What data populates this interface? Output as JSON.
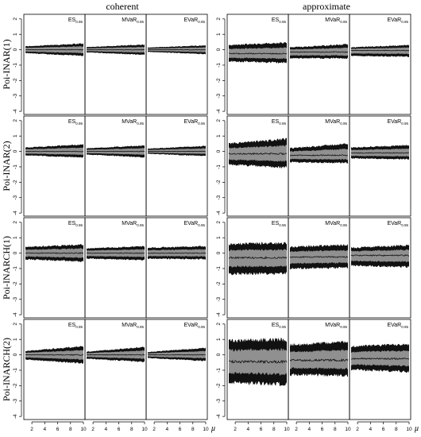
{
  "header": {
    "left": "coherent",
    "right": "approximate"
  },
  "rows": [
    {
      "label": "Poi-INAR(1)"
    },
    {
      "label": "Poi-INAR(2)"
    },
    {
      "label": "Poi-INARCH(1)"
    },
    {
      "label": "Poi-INARCH(2)"
    }
  ],
  "measures": [
    {
      "base": "ES",
      "sub": "0.95"
    },
    {
      "base": "MVaR",
      "sub": "0.95"
    },
    {
      "base": "EVaR",
      "sub": "0.95"
    }
  ],
  "x_axis_label": "μ",
  "chart_data": {
    "type": "area",
    "layout": "4 rows × 6 columns of panels",
    "x_ticks": [
      2,
      4,
      6,
      8,
      10
    ],
    "xlim": [
      1,
      10
    ],
    "y_ticks": [
      -4,
      -3,
      -2,
      -1,
      0,
      1,
      2
    ],
    "ylim": [
      -4.2,
      2.3
    ],
    "colors": {
      "outer_band": "#111111",
      "inner_band": "#909090",
      "median": "#111111"
    },
    "panels": [
      {
        "row": 0,
        "block": "coherent",
        "measure": 0,
        "envelope": [
          [
            1,
            -0.22,
            0.22
          ],
          [
            10,
            -0.4,
            0.4
          ]
        ],
        "median": 0.0
      },
      {
        "row": 0,
        "block": "coherent",
        "measure": 1,
        "envelope": [
          [
            1,
            -0.17,
            0.17
          ],
          [
            10,
            -0.33,
            0.33
          ]
        ],
        "median": 0.0
      },
      {
        "row": 0,
        "block": "coherent",
        "measure": 2,
        "envelope": [
          [
            1,
            -0.14,
            0.14
          ],
          [
            10,
            -0.28,
            0.28
          ]
        ],
        "median": 0.0
      },
      {
        "row": 0,
        "block": "approximate",
        "measure": 0,
        "envelope": [
          [
            1,
            -0.75,
            0.3
          ],
          [
            10,
            -0.85,
            0.45
          ]
        ],
        "median": -0.25
      },
      {
        "row": 0,
        "block": "approximate",
        "measure": 1,
        "envelope": [
          [
            1,
            -0.55,
            0.15
          ],
          [
            10,
            -0.55,
            0.35
          ]
        ],
        "median": -0.15
      },
      {
        "row": 0,
        "block": "approximate",
        "measure": 2,
        "envelope": [
          [
            1,
            -0.4,
            0.15
          ],
          [
            10,
            -0.45,
            0.3
          ]
        ],
        "median": -0.05
      },
      {
        "row": 1,
        "block": "coherent",
        "measure": 0,
        "envelope": [
          [
            1,
            -0.25,
            0.25
          ],
          [
            10,
            -0.4,
            0.45
          ]
        ],
        "median": 0.0
      },
      {
        "row": 1,
        "block": "coherent",
        "measure": 1,
        "envelope": [
          [
            1,
            -0.2,
            0.2
          ],
          [
            10,
            -0.38,
            0.38
          ]
        ],
        "median": 0.0
      },
      {
        "row": 1,
        "block": "coherent",
        "measure": 2,
        "envelope": [
          [
            1,
            -0.15,
            0.18
          ],
          [
            10,
            -0.3,
            0.35
          ]
        ],
        "median": 0.0
      },
      {
        "row": 1,
        "block": "approximate",
        "measure": 0,
        "envelope": [
          [
            1,
            -0.85,
            0.5
          ],
          [
            10,
            -1.05,
            0.8
          ]
        ],
        "median": -0.15
      },
      {
        "row": 1,
        "block": "approximate",
        "measure": 1,
        "envelope": [
          [
            1,
            -0.7,
            0.2
          ],
          [
            10,
            -0.75,
            0.5
          ]
        ],
        "median": -0.25
      },
      {
        "row": 1,
        "block": "approximate",
        "measure": 2,
        "envelope": [
          [
            1,
            -0.45,
            0.25
          ],
          [
            10,
            -0.5,
            0.4
          ]
        ],
        "median": -0.1
      },
      {
        "row": 2,
        "block": "coherent",
        "measure": 0,
        "envelope": [
          [
            1,
            -0.4,
            0.4
          ],
          [
            10,
            -0.55,
            0.55
          ]
        ],
        "median": 0.0
      },
      {
        "row": 2,
        "block": "coherent",
        "measure": 1,
        "envelope": [
          [
            1,
            -0.35,
            0.3
          ],
          [
            10,
            -0.45,
            0.45
          ]
        ],
        "median": 0.0
      },
      {
        "row": 2,
        "block": "coherent",
        "measure": 2,
        "envelope": [
          [
            1,
            -0.35,
            0.35
          ],
          [
            10,
            -0.4,
            0.45
          ]
        ],
        "median": 0.0
      },
      {
        "row": 2,
        "block": "approximate",
        "measure": 0,
        "envelope": [
          [
            1,
            -1.35,
            0.6
          ],
          [
            10,
            -1.3,
            0.65
          ]
        ],
        "median": -0.3
      },
      {
        "row": 2,
        "block": "approximate",
        "measure": 1,
        "envelope": [
          [
            1,
            -1.0,
            0.4
          ],
          [
            10,
            -0.95,
            0.55
          ]
        ],
        "median": -0.25
      },
      {
        "row": 2,
        "block": "approximate",
        "measure": 2,
        "envelope": [
          [
            1,
            -0.8,
            0.35
          ],
          [
            10,
            -0.9,
            0.5
          ]
        ],
        "median": -0.15
      },
      {
        "row": 3,
        "block": "coherent",
        "measure": 0,
        "envelope": [
          [
            1,
            -0.3,
            0.25
          ],
          [
            10,
            -0.55,
            0.55
          ]
        ],
        "median": 0.0
      },
      {
        "row": 3,
        "block": "coherent",
        "measure": 1,
        "envelope": [
          [
            1,
            -0.25,
            0.2
          ],
          [
            10,
            -0.45,
            0.5
          ]
        ],
        "median": 0.0
      },
      {
        "row": 3,
        "block": "coherent",
        "measure": 2,
        "envelope": [
          [
            1,
            -0.2,
            0.18
          ],
          [
            10,
            -0.4,
            0.45
          ]
        ],
        "median": 0.0
      },
      {
        "row": 3,
        "block": "approximate",
        "measure": 0,
        "envelope": [
          [
            1,
            -1.8,
            0.9
          ],
          [
            10,
            -1.9,
            1.0
          ]
        ],
        "median": -0.45
      },
      {
        "row": 3,
        "block": "approximate",
        "measure": 1,
        "envelope": [
          [
            1,
            -1.3,
            0.65
          ],
          [
            10,
            -1.35,
            0.85
          ]
        ],
        "median": -0.35
      },
      {
        "row": 3,
        "block": "approximate",
        "measure": 2,
        "envelope": [
          [
            1,
            -0.95,
            0.55
          ],
          [
            10,
            -1.1,
            0.7
          ]
        ],
        "median": -0.25
      }
    ]
  }
}
